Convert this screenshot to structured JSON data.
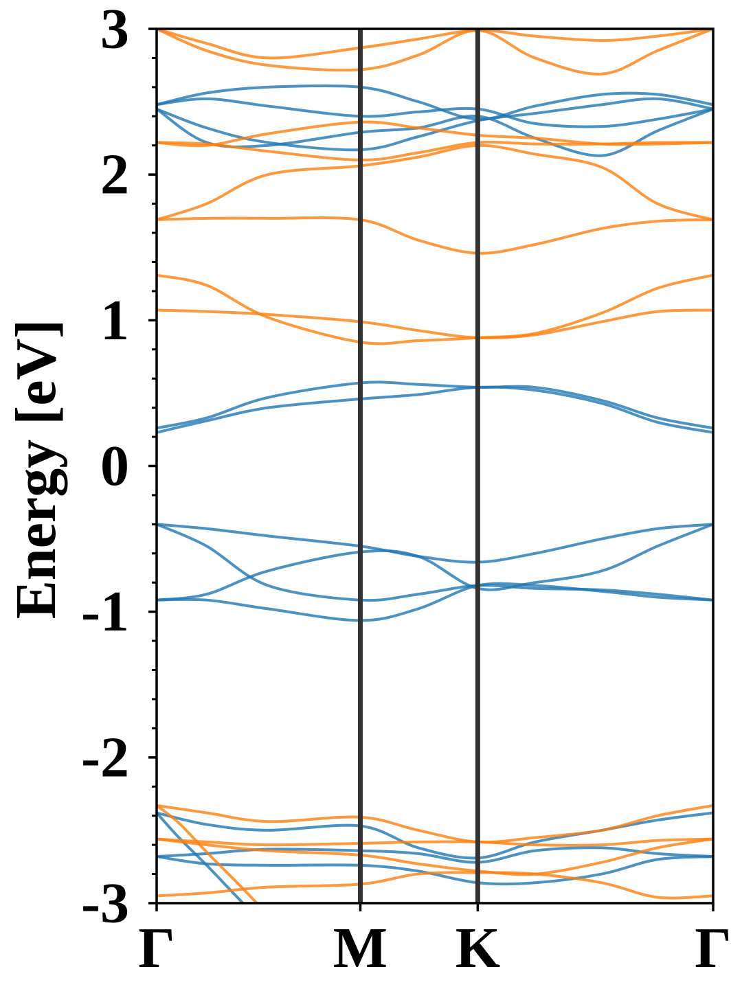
{
  "chart_data": {
    "type": "line",
    "title": "",
    "xlabel": "",
    "ylabel": "Energy [eV]",
    "ylim": [
      -3,
      3
    ],
    "yticks": [
      {
        "value": 3,
        "label": "3"
      },
      {
        "value": 2,
        "label": "2"
      },
      {
        "value": 1,
        "label": "1"
      },
      {
        "value": 0,
        "label": "0"
      },
      {
        "value": -1,
        "label": "-1"
      },
      {
        "value": -2,
        "label": "-2"
      },
      {
        "value": -3,
        "label": "-3"
      }
    ],
    "xlim": [
      0,
      1
    ],
    "kpoints": [
      {
        "label": "Γ",
        "x": 0.0
      },
      {
        "label": "M",
        "x": 0.366
      },
      {
        "label": "K",
        "x": 0.577
      },
      {
        "label": "Γ",
        "x": 1.0
      }
    ],
    "grid": false,
    "legend": "none",
    "colors": {
      "spin_up": "#1f77b4",
      "spin_down": "#ff7f0e",
      "kline": "#333333"
    },
    "series": [
      {
        "color": "spin_up",
        "x": [
          0,
          0.09,
          0.2,
          0.366,
          0.47,
          0.577,
          0.68,
          0.8,
          0.9,
          1.0
        ],
        "y": [
          -0.4,
          -0.43,
          -0.48,
          -0.55,
          -0.62,
          -0.66,
          -0.6,
          -0.5,
          -0.43,
          -0.4
        ]
      },
      {
        "color": "spin_up",
        "x": [
          0,
          0.09,
          0.2,
          0.366,
          0.47,
          0.577,
          0.68,
          0.8,
          0.9,
          1.0
        ],
        "y": [
          -0.4,
          -0.55,
          -0.82,
          -0.92,
          -0.88,
          -0.82,
          -0.84,
          -0.85,
          -0.88,
          -0.92
        ]
      },
      {
        "color": "spin_up",
        "x": [
          0,
          0.09,
          0.2,
          0.366,
          0.47,
          0.577,
          0.68,
          0.8,
          0.9,
          1.0
        ],
        "y": [
          -0.92,
          -0.88,
          -0.72,
          -0.59,
          -0.62,
          -0.84,
          -0.8,
          -0.72,
          -0.55,
          -0.4
        ]
      },
      {
        "color": "spin_up",
        "x": [
          0,
          0.09,
          0.2,
          0.366,
          0.47,
          0.577,
          0.68,
          0.8,
          0.9,
          1.0
        ],
        "y": [
          -0.92,
          -0.92,
          -0.98,
          -1.06,
          -0.98,
          -0.82,
          -0.82,
          -0.86,
          -0.9,
          -0.92
        ]
      },
      {
        "color": "spin_up",
        "x": [
          0,
          0.09,
          0.2,
          0.366,
          0.47,
          0.577,
          0.68,
          0.8,
          0.9,
          1.0
        ],
        "y": [
          0.26,
          0.33,
          0.47,
          0.57,
          0.56,
          0.54,
          0.54,
          0.45,
          0.33,
          0.26
        ]
      },
      {
        "color": "spin_up",
        "x": [
          0,
          0.09,
          0.2,
          0.366,
          0.47,
          0.577,
          0.68,
          0.8,
          0.9,
          1.0
        ],
        "y": [
          0.23,
          0.31,
          0.4,
          0.46,
          0.49,
          0.54,
          0.52,
          0.43,
          0.3,
          0.23
        ]
      },
      {
        "color": "spin_up",
        "x": [
          0,
          0.09,
          0.2,
          0.366,
          0.47,
          0.577,
          0.68,
          0.8,
          0.9,
          1.0
        ],
        "y": [
          2.48,
          2.56,
          2.6,
          2.6,
          2.5,
          2.38,
          2.47,
          2.55,
          2.55,
          2.48
        ]
      },
      {
        "color": "spin_up",
        "x": [
          0,
          0.09,
          0.2,
          0.366,
          0.47,
          0.577,
          0.68,
          0.8,
          0.9,
          1.0
        ],
        "y": [
          2.48,
          2.52,
          2.47,
          2.4,
          2.43,
          2.45,
          2.35,
          2.33,
          2.38,
          2.45
        ]
      },
      {
        "color": "spin_up",
        "x": [
          0,
          0.09,
          0.2,
          0.366,
          0.47,
          0.577,
          0.68,
          0.8,
          0.9,
          1.0
        ],
        "y": [
          2.45,
          2.32,
          2.22,
          2.17,
          2.26,
          2.37,
          2.42,
          2.48,
          2.52,
          2.45
        ]
      },
      {
        "color": "spin_up",
        "x": [
          0,
          0.09,
          0.2,
          0.366,
          0.47,
          0.577,
          0.68,
          0.8,
          0.9,
          1.0
        ],
        "y": [
          2.45,
          2.22,
          2.2,
          2.29,
          2.32,
          2.4,
          2.25,
          2.13,
          2.3,
          2.45
        ]
      },
      {
        "color": "spin_up",
        "x": [
          0,
          0.09,
          0.2,
          0.366,
          0.47,
          0.577,
          0.68,
          0.8,
          0.9,
          1.0
        ],
        "y": [
          -2.38,
          -2.46,
          -2.5,
          -2.47,
          -2.62,
          -2.69,
          -2.58,
          -2.5,
          -2.43,
          -2.38
        ]
      },
      {
        "color": "spin_up",
        "x": [
          0,
          0.09,
          0.2,
          0.366,
          0.47,
          0.577,
          0.68,
          0.8,
          0.9,
          1.0
        ],
        "y": [
          -2.68,
          -2.66,
          -2.63,
          -2.64,
          -2.66,
          -2.72,
          -2.64,
          -2.62,
          -2.66,
          -2.68
        ]
      },
      {
        "color": "spin_up",
        "x": [
          0,
          0.09,
          0.2,
          0.366,
          0.47,
          0.577,
          0.68,
          0.8,
          0.9,
          1.0
        ],
        "y": [
          -2.68,
          -2.73,
          -2.74,
          -2.74,
          -2.78,
          -2.86,
          -2.86,
          -2.8,
          -2.7,
          -2.68
        ]
      },
      {
        "color": "spin_up",
        "x": [
          0,
          0.04,
          0.09,
          0.13,
          0.155
        ],
        "y": [
          -2.38,
          -2.55,
          -2.74,
          -2.9,
          -3.0
        ]
      },
      {
        "color": "spin_down",
        "x": [
          0,
          0.09,
          0.2,
          0.366,
          0.47,
          0.577,
          0.68,
          0.8,
          0.9,
          1.0
        ],
        "y": [
          3.0,
          2.9,
          2.8,
          2.87,
          2.93,
          2.99,
          2.95,
          2.92,
          2.95,
          3.0
        ]
      },
      {
        "color": "spin_down",
        "x": [
          0,
          0.09,
          0.2,
          0.366,
          0.47,
          0.577,
          0.68,
          0.8,
          0.9,
          1.0
        ],
        "y": [
          3.0,
          2.85,
          2.75,
          2.72,
          2.82,
          2.99,
          2.8,
          2.69,
          2.85,
          3.0
        ]
      },
      {
        "color": "spin_down",
        "x": [
          0,
          0.09,
          0.2,
          0.366,
          0.47,
          0.577,
          0.68,
          0.8,
          0.9,
          1.0
        ],
        "y": [
          2.22,
          2.2,
          2.28,
          2.36,
          2.32,
          2.27,
          2.25,
          2.21,
          2.21,
          2.22
        ]
      },
      {
        "color": "spin_down",
        "x": [
          0,
          0.09,
          0.2,
          0.366,
          0.47,
          0.577,
          0.68,
          0.8,
          0.9,
          1.0
        ],
        "y": [
          2.22,
          2.21,
          2.16,
          2.1,
          2.15,
          2.22,
          2.21,
          2.21,
          2.22,
          2.22
        ]
      },
      {
        "color": "spin_down",
        "x": [
          0,
          0.09,
          0.2,
          0.366,
          0.47,
          0.577,
          0.68,
          0.8,
          0.9,
          1.0
        ],
        "y": [
          1.69,
          1.8,
          2.0,
          2.06,
          2.12,
          2.2,
          2.14,
          2.05,
          1.8,
          1.69
        ]
      },
      {
        "color": "spin_down",
        "x": [
          0,
          0.09,
          0.2,
          0.366,
          0.47,
          0.577,
          0.68,
          0.8,
          0.9,
          1.0
        ],
        "y": [
          1.69,
          1.7,
          1.7,
          1.69,
          1.55,
          1.46,
          1.52,
          1.63,
          1.68,
          1.69
        ]
      },
      {
        "color": "spin_down",
        "x": [
          0,
          0.09,
          0.2,
          0.366,
          0.47,
          0.577,
          0.68,
          0.8,
          0.9,
          1.0
        ],
        "y": [
          1.31,
          1.24,
          1.02,
          0.85,
          0.86,
          0.88,
          0.91,
          1.05,
          1.22,
          1.31
        ]
      },
      {
        "color": "spin_down",
        "x": [
          0,
          0.09,
          0.2,
          0.366,
          0.47,
          0.577,
          0.68,
          0.8,
          0.9,
          1.0
        ],
        "y": [
          1.07,
          1.06,
          1.04,
          0.99,
          0.93,
          0.88,
          0.9,
          0.99,
          1.06,
          1.07
        ]
      },
      {
        "color": "spin_down",
        "x": [
          0,
          0.09,
          0.2,
          0.366,
          0.47,
          0.577,
          0.68,
          0.8,
          0.9,
          1.0
        ],
        "y": [
          -2.33,
          -2.38,
          -2.44,
          -2.41,
          -2.5,
          -2.58,
          -2.55,
          -2.5,
          -2.4,
          -2.33
        ]
      },
      {
        "color": "spin_down",
        "x": [
          0,
          0.09,
          0.2,
          0.366,
          0.47,
          0.577,
          0.68,
          0.8,
          0.9,
          1.0
        ],
        "y": [
          -2.56,
          -2.58,
          -2.6,
          -2.59,
          -2.58,
          -2.58,
          -2.6,
          -2.6,
          -2.57,
          -2.56
        ]
      },
      {
        "color": "spin_down",
        "x": [
          0,
          0.09,
          0.2,
          0.366,
          0.47,
          0.577,
          0.68,
          0.8,
          0.9,
          1.0
        ],
        "y": [
          -2.56,
          -2.6,
          -2.64,
          -2.67,
          -2.73,
          -2.78,
          -2.8,
          -2.72,
          -2.62,
          -2.56
        ]
      },
      {
        "color": "spin_down",
        "x": [
          0,
          0.09,
          0.2,
          0.366,
          0.47,
          0.577,
          0.68,
          0.8,
          0.9,
          1.0
        ],
        "y": [
          -2.95,
          -2.93,
          -2.89,
          -2.87,
          -2.8,
          -2.79,
          -2.8,
          -2.86,
          -2.96,
          -2.95
        ]
      },
      {
        "color": "spin_down",
        "x": [
          0,
          0.04,
          0.09,
          0.15,
          0.18
        ],
        "y": [
          -2.33,
          -2.45,
          -2.65,
          -2.88,
          -3.0
        ]
      }
    ]
  }
}
